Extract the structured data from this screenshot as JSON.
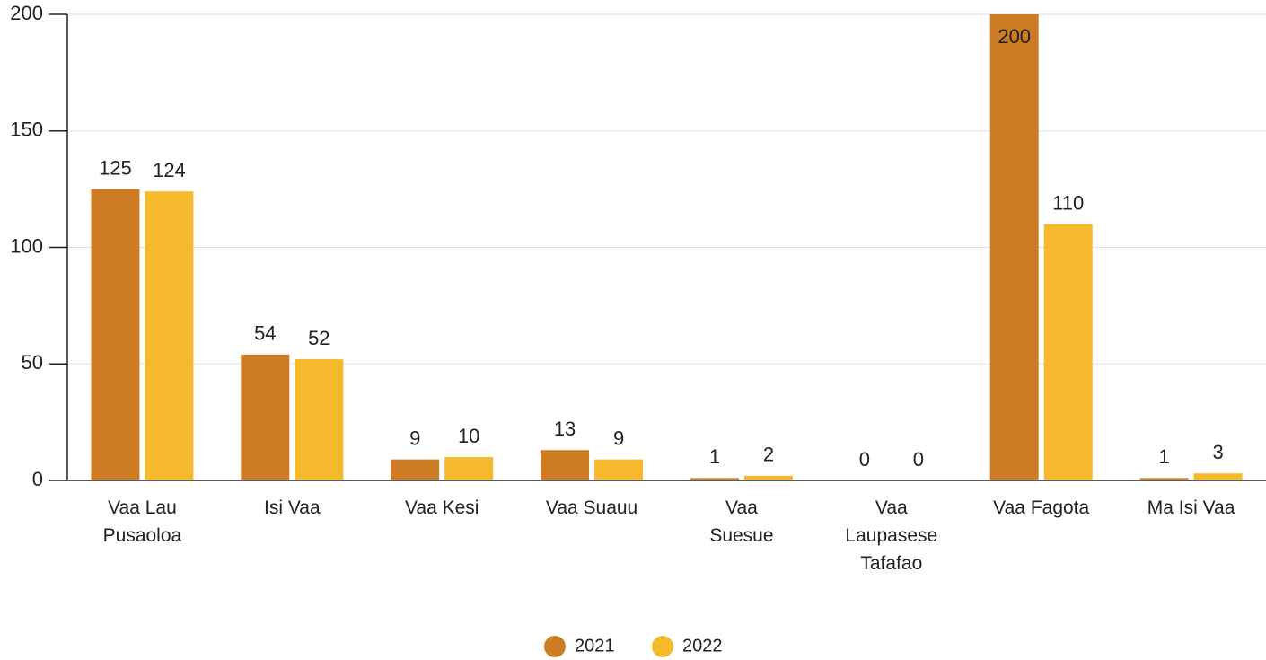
{
  "chart_data": {
    "type": "bar",
    "categories": [
      "Vaa Lau\nPusaoloa",
      "Isi Vaa",
      "Vaa Kesi",
      "Vaa Suauu",
      "Vaa\nSuesue",
      "Vaa\nLaupasese\nTafafao",
      "Vaa Fagota",
      "Ma Isi Vaa"
    ],
    "series": [
      {
        "name": "2021",
        "color": "#cd7b25",
        "values": [
          125,
          54,
          9,
          13,
          1,
          0,
          200,
          1
        ]
      },
      {
        "name": "2022",
        "color": "#f5b92e",
        "values": [
          124,
          52,
          10,
          9,
          2,
          0,
          110,
          3
        ]
      }
    ],
    "ylim": [
      0,
      200
    ],
    "yticks": [
      0,
      50,
      100,
      150,
      200
    ],
    "grid": true,
    "legend": "bottom"
  }
}
